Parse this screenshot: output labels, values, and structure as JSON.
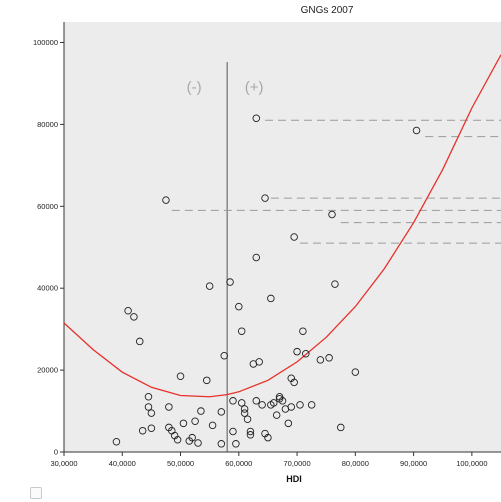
{
  "chart_data": {
    "type": "scatter",
    "title": "GNGs 2007",
    "xlabel": "HDI",
    "ylabel": "",
    "xlim": [
      30000,
      105000
    ],
    "ylim": [
      0,
      105000
    ],
    "xticks": [
      30000,
      40000,
      50000,
      60000,
      70000,
      80000,
      90000,
      100000
    ],
    "xtick_labels": [
      "30,0000",
      "40,0000",
      "50,0000",
      "60,0000",
      "70,0000",
      "80,0000",
      "90,0000",
      "100,0000"
    ],
    "yticks": [
      0,
      20000,
      40000,
      60000,
      80000,
      100000
    ],
    "ytick_labels": [
      "0",
      "20000",
      "40000",
      "60000",
      "80000",
      "100000"
    ],
    "grid": false,
    "background": "#ececec",
    "divider_x": 58000,
    "region_labels": [
      "(-)",
      "(+)"
    ],
    "fit_curve": {
      "color": "#e8302a",
      "x": [
        30000,
        35000,
        40000,
        45000,
        50000,
        55000,
        58000,
        60000,
        65000,
        70000,
        75000,
        80000,
        85000,
        90000,
        95000,
        100000,
        105000
      ],
      "y": [
        31500,
        25000,
        19500,
        15800,
        13800,
        13500,
        14000,
        14700,
        17500,
        22000,
        28000,
        35500,
        44800,
        56000,
        69000,
        84000,
        97000
      ]
    },
    "series": [
      {
        "values": [
          [
            39000,
            2500
          ],
          [
            41000,
            34500
          ],
          [
            42000,
            33000
          ],
          [
            43000,
            27000
          ],
          [
            43500,
            5200
          ],
          [
            44500,
            13500
          ],
          [
            44500,
            11000
          ],
          [
            45000,
            9500
          ],
          [
            45000,
            5800
          ],
          [
            47500,
            61500
          ],
          [
            48000,
            11000
          ],
          [
            48000,
            6000
          ],
          [
            48500,
            5200
          ],
          [
            49000,
            4000
          ],
          [
            49500,
            3000
          ],
          [
            50000,
            18500
          ],
          [
            50500,
            7000
          ],
          [
            51500,
            2700
          ],
          [
            52000,
            3500
          ],
          [
            52500,
            7500
          ],
          [
            53000,
            2200
          ],
          [
            53500,
            10000
          ],
          [
            54500,
            17500
          ],
          [
            55000,
            40500
          ],
          [
            55500,
            6500
          ],
          [
            57000,
            2000
          ],
          [
            57500,
            23500
          ],
          [
            57000,
            9800
          ],
          [
            58500,
            41500
          ],
          [
            59000,
            12500
          ],
          [
            59000,
            5000
          ],
          [
            59500,
            2000
          ],
          [
            60000,
            35500
          ],
          [
            60500,
            29500
          ],
          [
            60500,
            12000
          ],
          [
            61000,
            10500
          ],
          [
            61000,
            9500
          ],
          [
            61500,
            8000
          ],
          [
            62000,
            5000
          ],
          [
            62000,
            4200
          ],
          [
            62500,
            21500
          ],
          [
            63000,
            81500
          ],
          [
            63000,
            12500
          ],
          [
            63000,
            47500
          ],
          [
            63500,
            22000
          ],
          [
            64000,
            11500
          ],
          [
            64500,
            62000
          ],
          [
            64500,
            4500
          ],
          [
            65000,
            3500
          ],
          [
            65500,
            37500
          ],
          [
            65500,
            11500
          ],
          [
            66000,
            12000
          ],
          [
            66500,
            9000
          ],
          [
            67000,
            13500
          ],
          [
            67000,
            13000
          ],
          [
            67500,
            12500
          ],
          [
            68000,
            10500
          ],
          [
            68500,
            7000
          ],
          [
            69000,
            11000
          ],
          [
            69000,
            18000
          ],
          [
            69500,
            52500
          ],
          [
            69500,
            17000
          ],
          [
            70000,
            24500
          ],
          [
            70500,
            11500
          ],
          [
            71000,
            29500
          ],
          [
            71500,
            24000
          ],
          [
            72500,
            11500
          ],
          [
            74000,
            22500
          ],
          [
            75500,
            23000
          ],
          [
            76000,
            58000
          ],
          [
            76500,
            41000
          ],
          [
            77500,
            6000
          ],
          [
            80000,
            19500
          ],
          [
            90500,
            78500
          ]
        ]
      }
    ],
    "callout_lines": [
      {
        "x0": 64500,
        "x1": 105000,
        "y": 81000
      },
      {
        "x0": 92000,
        "x1": 105000,
        "y": 77000
      },
      {
        "x0": 65500,
        "x1": 105000,
        "y": 62000
      },
      {
        "x0": 48500,
        "x1": 105000,
        "y": 59000
      },
      {
        "x0": 77500,
        "x1": 105000,
        "y": 56000
      },
      {
        "x0": 70500,
        "x1": 105000,
        "y": 51000
      }
    ]
  }
}
